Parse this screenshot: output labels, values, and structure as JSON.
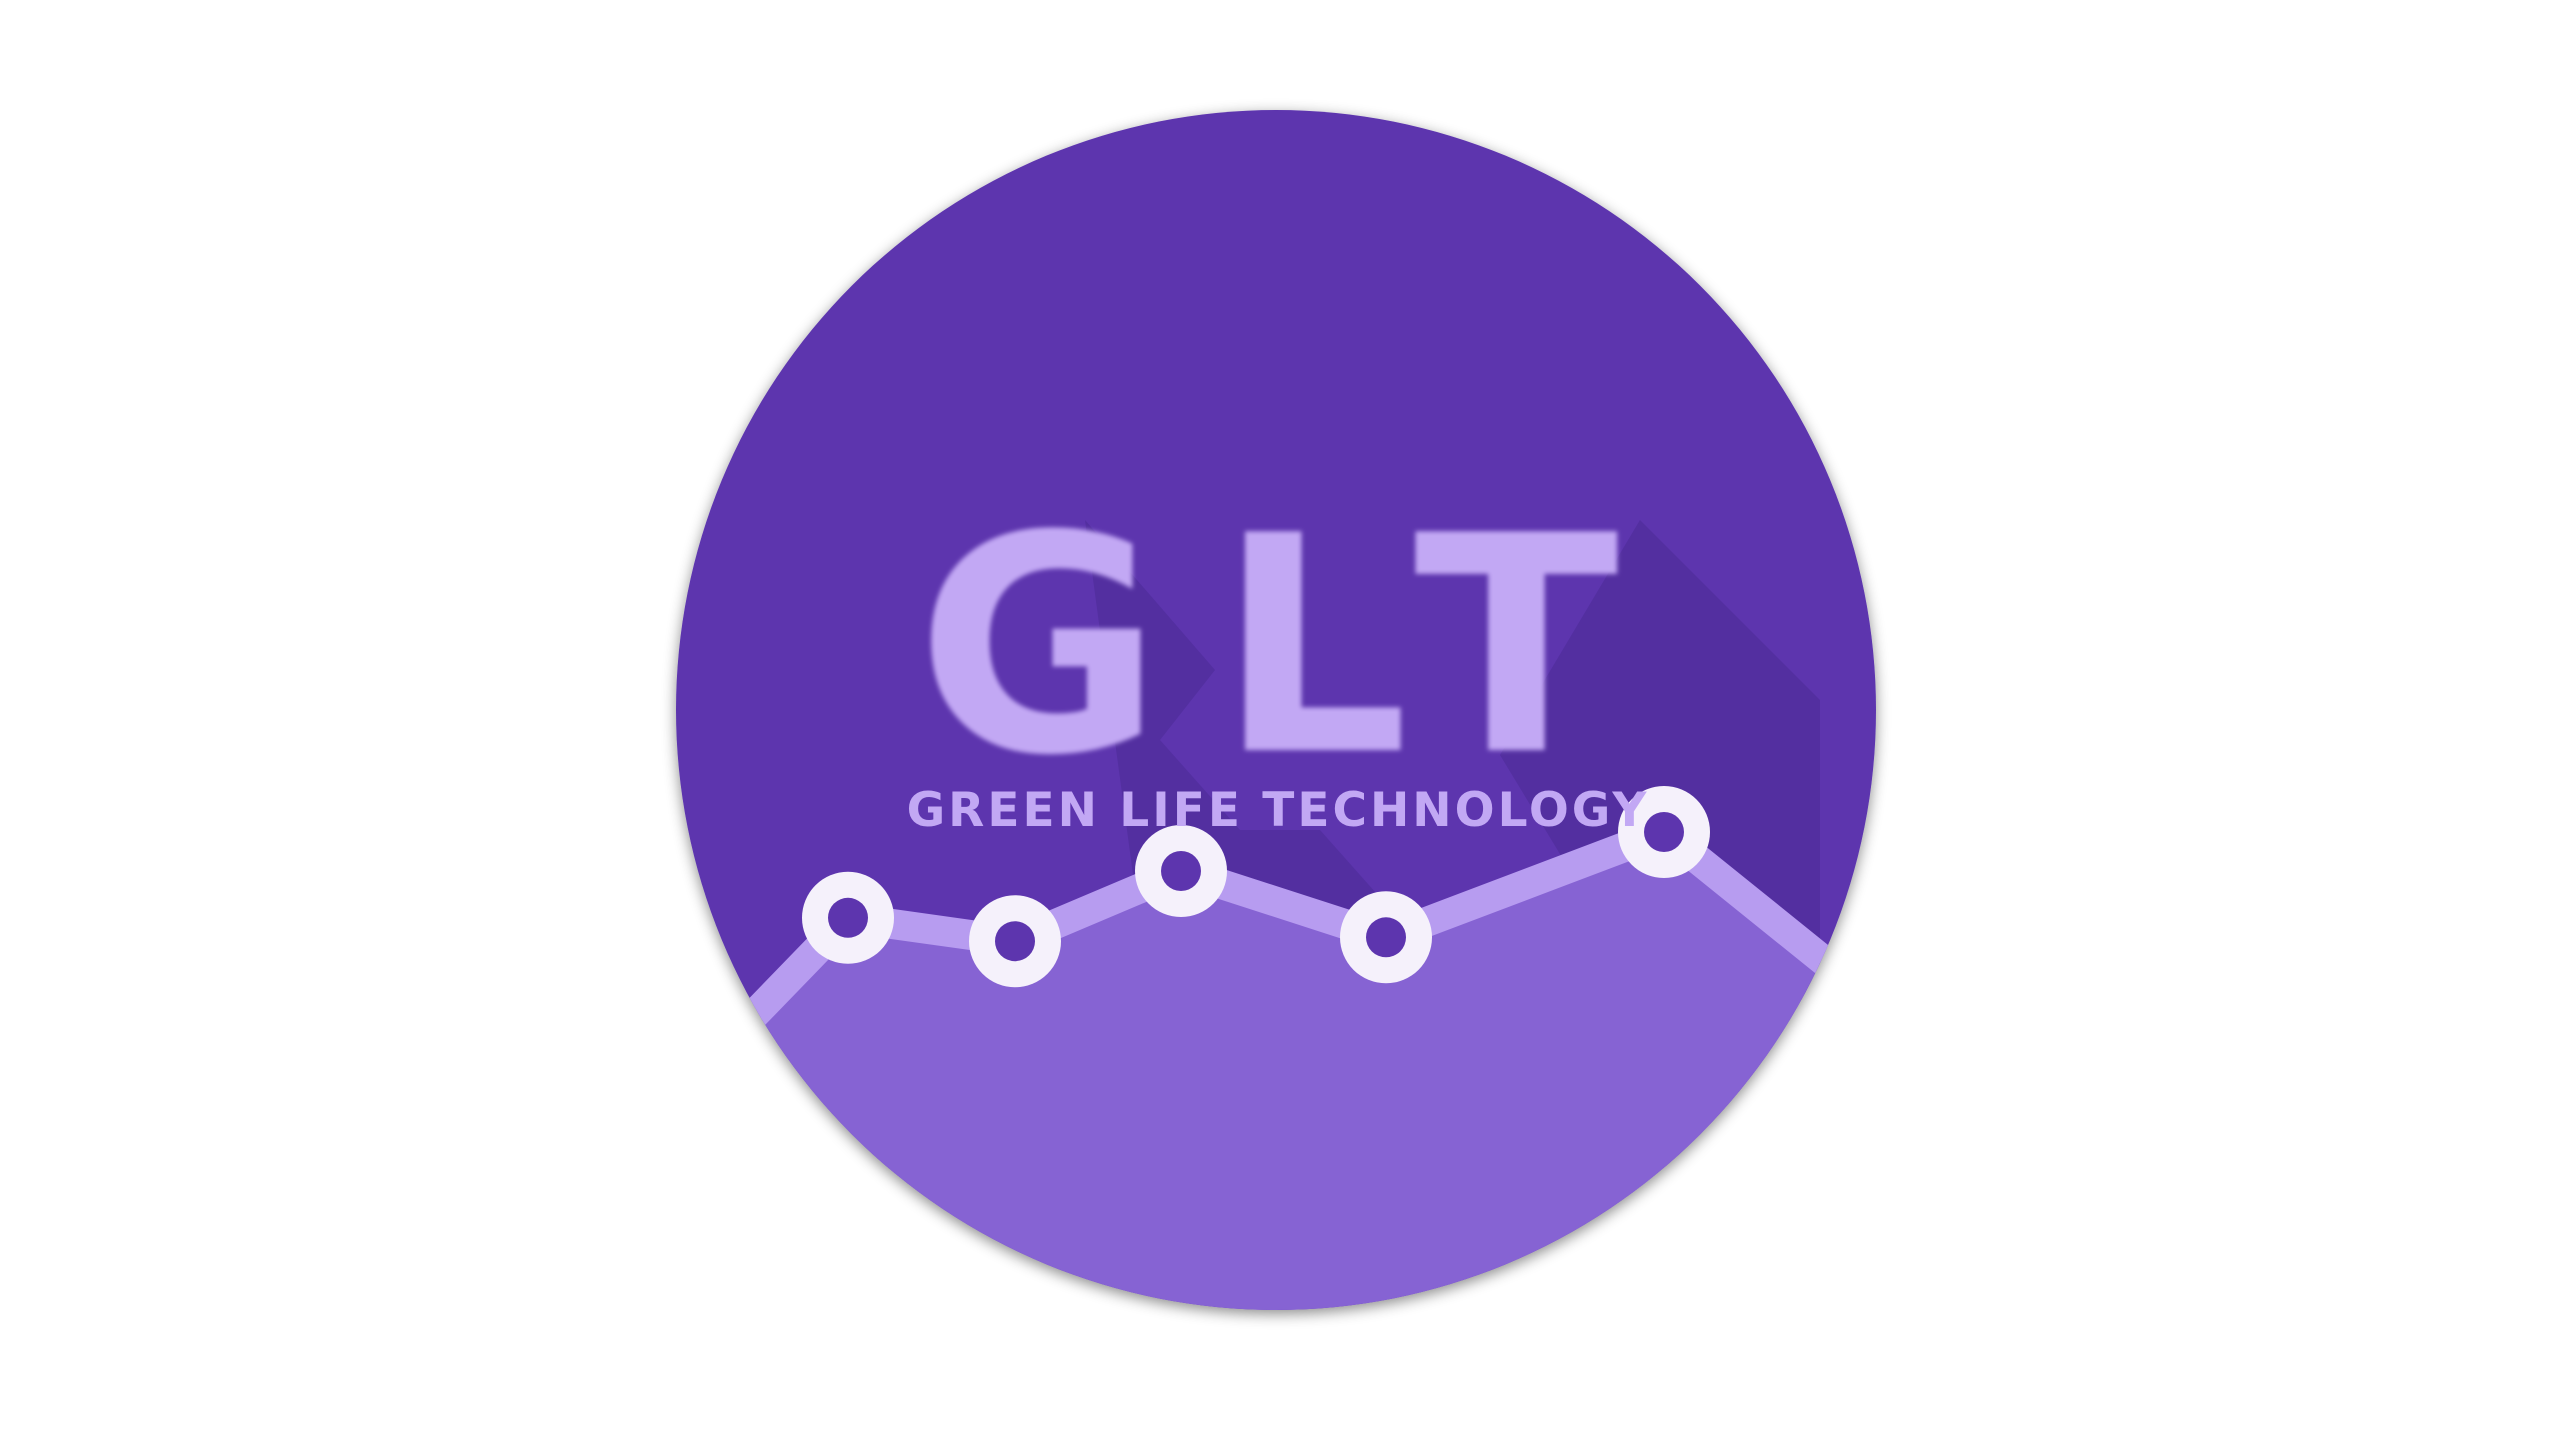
{
  "logo": {
    "monogram": "GLT",
    "tagline": "GREEN LIFE TECHNOLOGY",
    "colors": {
      "background": "#ffffff",
      "circle": "#5d35ae",
      "long_shadow": "#4a2a95",
      "area_fill": "#8663d3",
      "line": "#b79cf0",
      "letters": "#c2a8f4",
      "marker_ring": "#f5f1fb",
      "marker_center": "#5d35ae"
    },
    "trend_points": [
      0.56,
      0.44,
      0.8,
      0.46,
      1.0
    ]
  }
}
